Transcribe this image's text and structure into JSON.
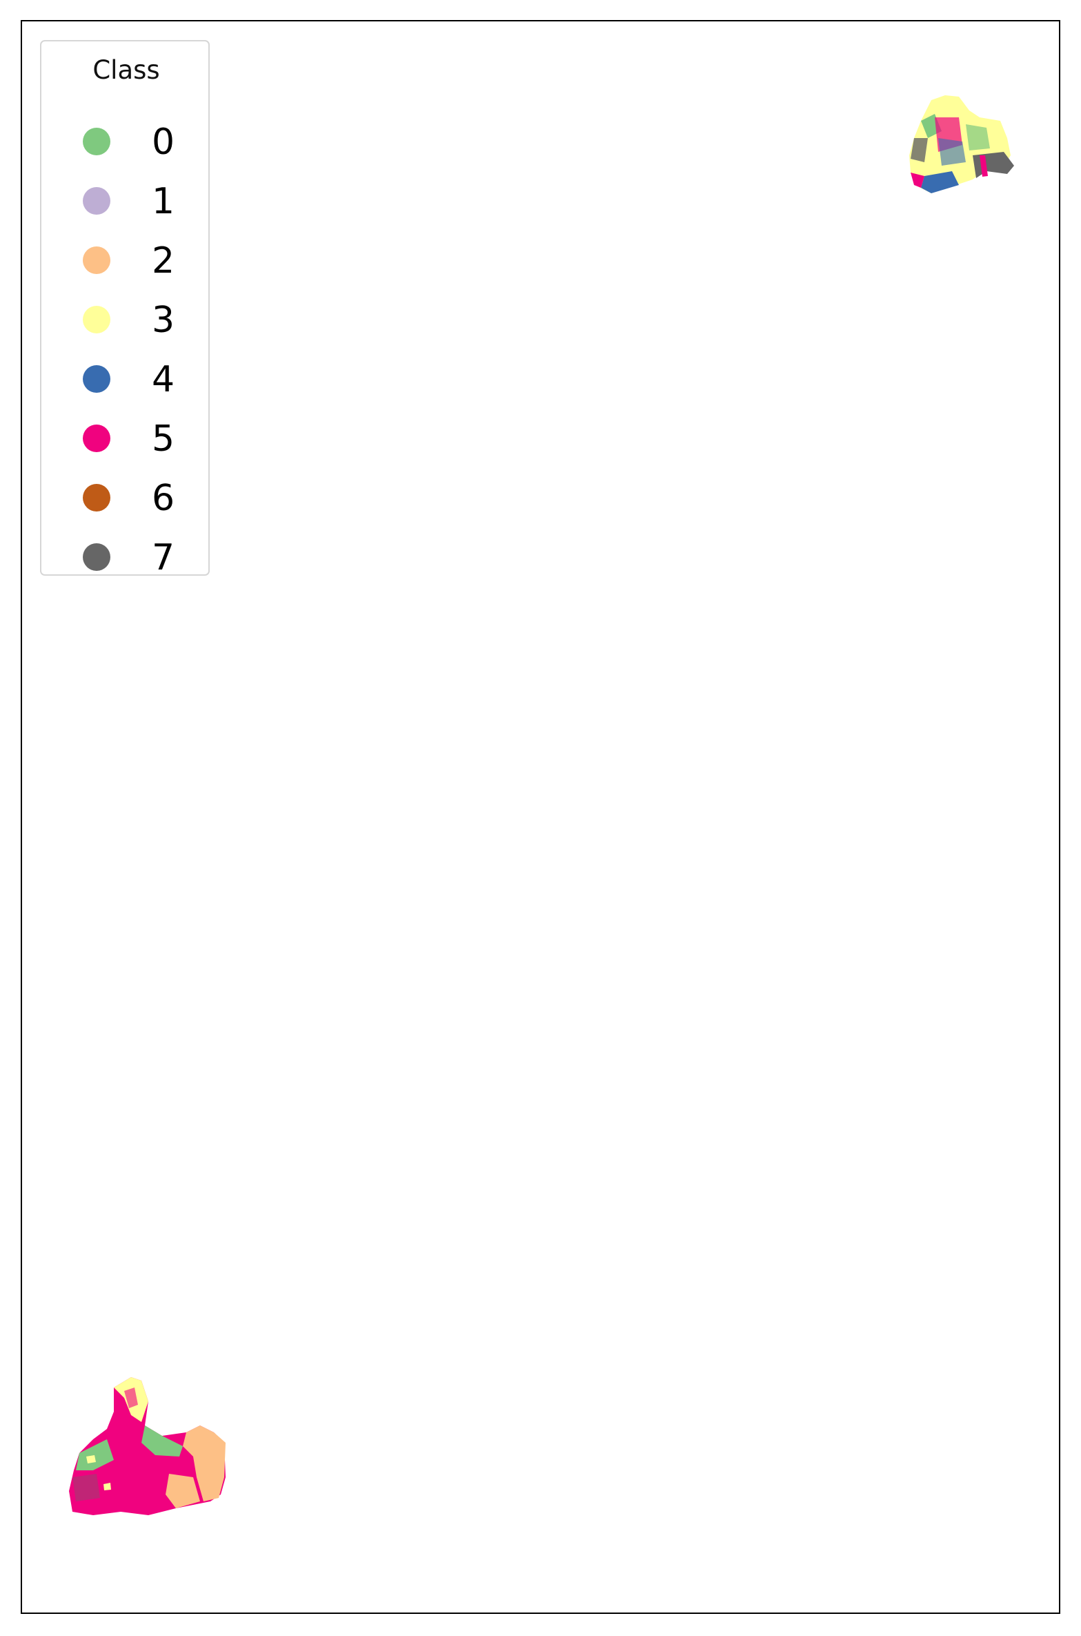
{
  "legend": {
    "title": "Class",
    "items": [
      {
        "label": "0",
        "color": "#7fc97f"
      },
      {
        "label": "1",
        "color": "#beaed4"
      },
      {
        "label": "2",
        "color": "#fdc086"
      },
      {
        "label": "3",
        "color": "#ffff99"
      },
      {
        "label": "4",
        "color": "#386cb0"
      },
      {
        "label": "5",
        "color": "#f0027f"
      },
      {
        "label": "6",
        "color": "#bf5b17"
      },
      {
        "label": "7",
        "color": "#666666"
      }
    ]
  },
  "regions": [
    {
      "name": "region-top-right",
      "dominant_classes": [
        "3",
        "7",
        "4",
        "5",
        "0"
      ]
    },
    {
      "name": "region-bottom-left",
      "dominant_classes": [
        "5",
        "2",
        "0",
        "3"
      ]
    }
  ]
}
